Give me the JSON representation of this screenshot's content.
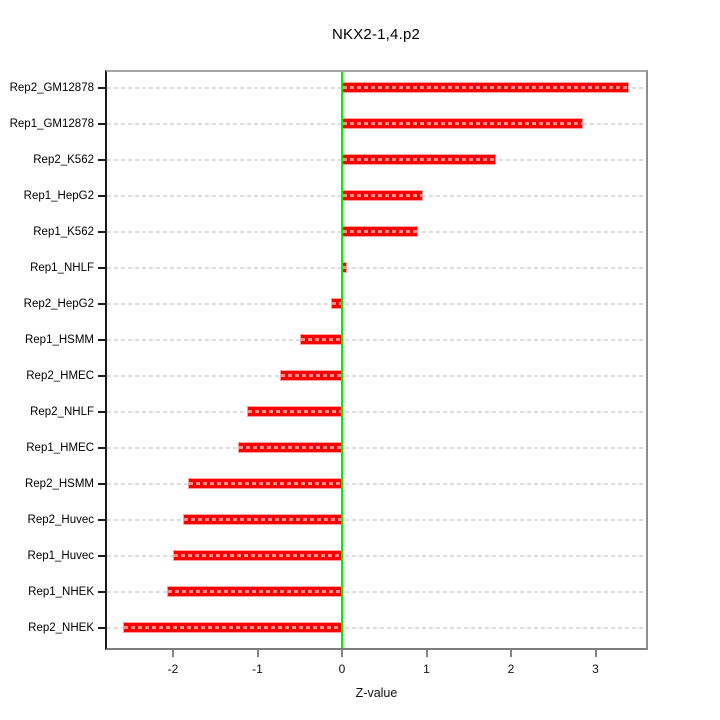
{
  "title": "NKX2-1,4.p2",
  "axis": {
    "xlabel": "Z-value",
    "x_tick_labels": [
      "-2",
      "-1",
      "0",
      "1",
      "2",
      "3"
    ],
    "x_tick_values": [
      -2,
      -1,
      0,
      1,
      2,
      3
    ]
  },
  "colors": {
    "bar": "#fb0000",
    "bar_stripe": "rgba(255,255,255,0.55)",
    "zero_line": "#00f000",
    "gridline": "#dedede",
    "box_gray": "#8f8f8f",
    "axis_black": "#1a1a1a",
    "background": "#ffffff"
  },
  "chart_data": {
    "type": "bar",
    "orientation": "horizontal",
    "title": "NKX2-1,4.p2",
    "xlabel": "Z-value",
    "ylabel": "",
    "categories": [
      "Rep2_GM12878",
      "Rep1_GM12878",
      "Rep2_K562",
      "Rep1_HepG2",
      "Rep1_K562",
      "Rep1_NHLF",
      "Rep2_HepG2",
      "Rep1_HSMM",
      "Rep2_HMEC",
      "Rep2_NHLF",
      "Rep1_HMEC",
      "Rep2_HSMM",
      "Rep2_Huvec",
      "Rep1_Huvec",
      "Rep1_NHEK",
      "Rep2_NHEK"
    ],
    "values": [
      3.4,
      2.85,
      1.82,
      0.96,
      0.9,
      0.06,
      -0.13,
      -0.5,
      -0.73,
      -1.12,
      -1.23,
      -1.82,
      -1.88,
      -2.0,
      -2.07,
      -2.59
    ],
    "xlim": [
      -2.8,
      3.62
    ],
    "x_ticks": [
      -2,
      -1,
      0,
      1,
      2,
      3
    ],
    "grid": "dashed horizontal line per category",
    "zero_reference_line": 0,
    "legend": null
  }
}
